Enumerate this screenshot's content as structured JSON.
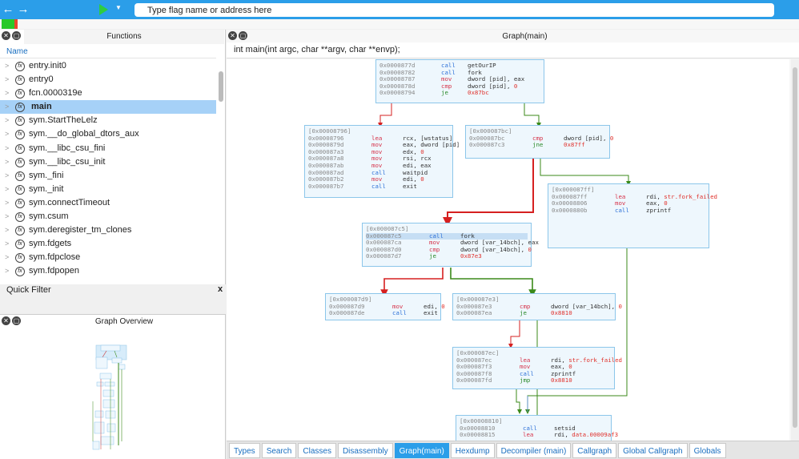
{
  "toolbar": {
    "back_icon": "←",
    "forward_icon": "→",
    "address_placeholder": "Type flag name or address here"
  },
  "functions_panel": {
    "title": "Functions",
    "column_header": "Name",
    "items": [
      {
        "name": "entry.init0",
        "selected": false
      },
      {
        "name": "entry0",
        "selected": false
      },
      {
        "name": "fcn.0000319e",
        "selected": false
      },
      {
        "name": "main",
        "selected": true
      },
      {
        "name": "sym.StartTheLelz",
        "selected": false
      },
      {
        "name": "sym.__do_global_dtors_aux",
        "selected": false
      },
      {
        "name": "sym.__libc_csu_fini",
        "selected": false
      },
      {
        "name": "sym.__libc_csu_init",
        "selected": false
      },
      {
        "name": "sym._fini",
        "selected": false
      },
      {
        "name": "sym._init",
        "selected": false
      },
      {
        "name": "sym.connectTimeout",
        "selected": false
      },
      {
        "name": "sym.csum",
        "selected": false
      },
      {
        "name": "sym.deregister_tm_clones",
        "selected": false
      },
      {
        "name": "sym.fdgets",
        "selected": false
      },
      {
        "name": "sym.fdpclose",
        "selected": false
      },
      {
        "name": "sym.fdpopen",
        "selected": false
      }
    ],
    "quick_filter_label": "Quick Filter",
    "quick_filter_close": "x"
  },
  "overview_panel": {
    "title": "Graph Overview"
  },
  "graph_panel": {
    "title": "Graph(main)",
    "signature": "int main(int argc, char **argv, char **envp);",
    "blocks": [
      {
        "id": "b0",
        "label": "",
        "lines": [
          {
            "addr": "0x0000877d",
            "mnem": "call",
            "ops": [
              {
                "t": "getOurIP",
                "c": ""
              }
            ],
            "color": "blue"
          },
          {
            "addr": "0x00008782",
            "mnem": "call",
            "ops": [
              {
                "t": "fork",
                "c": ""
              }
            ],
            "color": "blue"
          },
          {
            "addr": "0x00008787",
            "mnem": "mov",
            "ops": [
              {
                "t": "dword [pid], eax",
                "c": ""
              }
            ],
            "color": "red"
          },
          {
            "addr": "0x0000878d",
            "mnem": "cmp",
            "ops": [
              {
                "t": "dword [pid], ",
                "c": ""
              },
              {
                "t": "0",
                "c": "red"
              }
            ],
            "color": "red"
          },
          {
            "addr": "0x00008794",
            "mnem": "je",
            "ops": [
              {
                "t": "0x87bc",
                "c": "red"
              }
            ],
            "color": "green"
          }
        ]
      },
      {
        "id": "b1",
        "label": "[0x00008796]",
        "lines": [
          {
            "addr": "0x00008796",
            "mnem": "lea",
            "ops": [
              {
                "t": "rcx, [wstatus]",
                "c": ""
              }
            ],
            "color": "red"
          },
          {
            "addr": "0x0000879d",
            "mnem": "mov",
            "ops": [
              {
                "t": "eax, dword [pid]",
                "c": ""
              }
            ],
            "color": "red"
          },
          {
            "addr": "0x000087a3",
            "mnem": "mov",
            "ops": [
              {
                "t": "edx, ",
                "c": ""
              },
              {
                "t": "0",
                "c": "red"
              }
            ],
            "color": "red"
          },
          {
            "addr": "0x000087a8",
            "mnem": "mov",
            "ops": [
              {
                "t": "rsi, rcx",
                "c": ""
              }
            ],
            "color": "red"
          },
          {
            "addr": "0x000087ab",
            "mnem": "mov",
            "ops": [
              {
                "t": "edi, eax",
                "c": ""
              }
            ],
            "color": "red"
          },
          {
            "addr": "0x000087ad",
            "mnem": "call",
            "ops": [
              {
                "t": "waitpid",
                "c": ""
              }
            ],
            "color": "blue"
          },
          {
            "addr": "0x000087b2",
            "mnem": "mov",
            "ops": [
              {
                "t": "edi, ",
                "c": ""
              },
              {
                "t": "0",
                "c": "red"
              }
            ],
            "color": "red"
          },
          {
            "addr": "0x000087b7",
            "mnem": "call",
            "ops": [
              {
                "t": "exit",
                "c": ""
              }
            ],
            "color": "blue"
          }
        ]
      },
      {
        "id": "b2",
        "label": "[0x000087bc]",
        "lines": [
          {
            "addr": "0x000087bc",
            "mnem": "cmp",
            "ops": [
              {
                "t": "dword [pid], ",
                "c": ""
              },
              {
                "t": "0",
                "c": "red"
              }
            ],
            "color": "red"
          },
          {
            "addr": "0x000087c3",
            "mnem": "jne",
            "ops": [
              {
                "t": "0x87ff",
                "c": "red"
              }
            ],
            "color": "green"
          }
        ]
      },
      {
        "id": "b3",
        "label": "[0x000087ff]",
        "lines": [
          {
            "addr": "0x000087ff",
            "mnem": "lea",
            "ops": [
              {
                "t": "rdi, ",
                "c": ""
              },
              {
                "t": "str.fork_failed",
                "c": "red"
              }
            ],
            "color": "red"
          },
          {
            "addr": "0x00008806",
            "mnem": "mov",
            "ops": [
              {
                "t": "eax, ",
                "c": ""
              },
              {
                "t": "0",
                "c": "red"
              }
            ],
            "color": "red"
          },
          {
            "addr": "0x0000880b",
            "mnem": "call",
            "ops": [
              {
                "t": "zprintf",
                "c": ""
              }
            ],
            "color": "blue"
          }
        ]
      },
      {
        "id": "b4",
        "label": "[0x000087c5]",
        "lines": [
          {
            "addr": "0x000087c5",
            "mnem": "call",
            "ops": [
              {
                "t": "fork",
                "c": ""
              }
            ],
            "color": "blue",
            "hl": true
          },
          {
            "addr": "0x000087ca",
            "mnem": "mov",
            "ops": [
              {
                "t": "dword [var_14bch], eax",
                "c": ""
              }
            ],
            "color": "red"
          },
          {
            "addr": "0x000087d0",
            "mnem": "cmp",
            "ops": [
              {
                "t": "dword [var_14bch], ",
                "c": ""
              },
              {
                "t": "0",
                "c": "red"
              }
            ],
            "color": "red"
          },
          {
            "addr": "0x000087d7",
            "mnem": "je",
            "ops": [
              {
                "t": "0x87e3",
                "c": "red"
              }
            ],
            "color": "green"
          }
        ]
      },
      {
        "id": "b5",
        "label": "[0x000087d9]",
        "lines": [
          {
            "addr": "0x000087d9",
            "mnem": "mov",
            "ops": [
              {
                "t": "edi, ",
                "c": ""
              },
              {
                "t": "0",
                "c": "red"
              }
            ],
            "color": "red"
          },
          {
            "addr": "0x000087de",
            "mnem": "call",
            "ops": [
              {
                "t": "exit",
                "c": ""
              }
            ],
            "color": "blue"
          }
        ]
      },
      {
        "id": "b6",
        "label": "[0x000087e3]",
        "lines": [
          {
            "addr": "0x000087e3",
            "mnem": "cmp",
            "ops": [
              {
                "t": "dword [var_14bch], ",
                "c": ""
              },
              {
                "t": "0",
                "c": "red"
              }
            ],
            "color": "red"
          },
          {
            "addr": "0x000087ea",
            "mnem": "je",
            "ops": [
              {
                "t": "0x8810",
                "c": "red"
              }
            ],
            "color": "green"
          }
        ]
      },
      {
        "id": "b7",
        "label": "[0x000087ec]",
        "lines": [
          {
            "addr": "0x000087ec",
            "mnem": "lea",
            "ops": [
              {
                "t": "rdi, ",
                "c": ""
              },
              {
                "t": "str.fork_failed",
                "c": "red"
              }
            ],
            "color": "red"
          },
          {
            "addr": "0x000087f3",
            "mnem": "mov",
            "ops": [
              {
                "t": "eax, ",
                "c": ""
              },
              {
                "t": "0",
                "c": "red"
              }
            ],
            "color": "red"
          },
          {
            "addr": "0x000087f8",
            "mnem": "call",
            "ops": [
              {
                "t": "zprintf",
                "c": ""
              }
            ],
            "color": "blue"
          },
          {
            "addr": "0x000087fd",
            "mnem": "jmp",
            "ops": [
              {
                "t": "0x8810",
                "c": "red"
              }
            ],
            "color": "green"
          }
        ]
      },
      {
        "id": "b8",
        "label": "[0x00008810]",
        "lines": [
          {
            "addr": "0x00008810",
            "mnem": "call",
            "ops": [
              {
                "t": "setsid",
                "c": ""
              }
            ],
            "color": "blue"
          },
          {
            "addr": "0x00008815",
            "mnem": "lea",
            "ops": [
              {
                "t": "rdi, ",
                "c": ""
              },
              {
                "t": "data.00009af3",
                "c": "red"
              }
            ],
            "color": "red"
          }
        ]
      }
    ]
  },
  "tabs": [
    {
      "label": "Types",
      "active": false
    },
    {
      "label": "Search",
      "active": false
    },
    {
      "label": "Classes",
      "active": false
    },
    {
      "label": "Disassembly",
      "active": false
    },
    {
      "label": "Graph(main)",
      "active": true
    },
    {
      "label": "Hexdump",
      "active": false
    },
    {
      "label": "Decompiler (main)",
      "active": false
    },
    {
      "label": "Callgraph",
      "active": false
    },
    {
      "label": "Global Callgraph",
      "active": false
    },
    {
      "label": "Globals",
      "active": false
    }
  ],
  "colors": {
    "accent": "#2b9ee9",
    "edge_true": "#3b8a1a",
    "edge_false": "#d62020",
    "edge_plain": "#5a8fc0",
    "block_bg": "#eef7fd",
    "block_border": "#8cc6ea",
    "selection": "#a6d1f7"
  }
}
